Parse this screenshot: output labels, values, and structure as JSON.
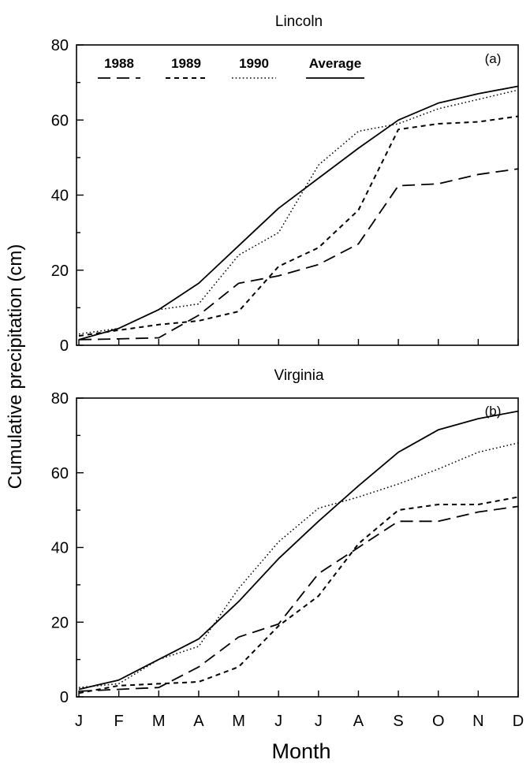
{
  "figure": {
    "ylabel": "Cumulative precipitation (cm)",
    "xlabel": "Month"
  },
  "legend": {
    "placement": "top",
    "entries": [
      "1988",
      "1989",
      "1990",
      "Average"
    ]
  },
  "chart_data": [
    {
      "type": "line",
      "title": "Lincoln",
      "panel_label": "(a)",
      "categories": [
        "J",
        "F",
        "M",
        "A",
        "M",
        "J",
        "J",
        "A",
        "S",
        "O",
        "N",
        "D"
      ],
      "ylim": [
        0,
        80
      ],
      "yticks": [
        "0",
        "20",
        "40",
        "60",
        "80"
      ],
      "series": [
        {
          "name": "1988",
          "style": "dashed",
          "values": [
            1.5,
            1.7,
            2.0,
            8.0,
            16.5,
            18.5,
            21.5,
            27.0,
            42.5,
            43.0,
            45.5,
            47.0
          ]
        },
        {
          "name": "1989",
          "style": "short-dashed",
          "values": [
            2.5,
            4.0,
            5.5,
            6.5,
            9.0,
            21.0,
            26.0,
            36.0,
            57.5,
            59.0,
            59.5,
            61.0
          ]
        },
        {
          "name": "1990",
          "style": "dotted",
          "values": [
            3.0,
            4.5,
            9.5,
            11.0,
            24.0,
            30.0,
            48.0,
            57.0,
            59.0,
            63.0,
            65.5,
            68.0
          ]
        },
        {
          "name": "Average",
          "style": "solid",
          "values": [
            1.5,
            4.5,
            9.5,
            16.5,
            26.5,
            36.5,
            44.5,
            52.5,
            60.0,
            64.5,
            67.0,
            69.0
          ]
        }
      ]
    },
    {
      "type": "line",
      "title": "Virginia",
      "panel_label": "(b)",
      "categories": [
        "J",
        "F",
        "M",
        "A",
        "M",
        "J",
        "J",
        "A",
        "S",
        "O",
        "N",
        "D"
      ],
      "ylim": [
        0,
        80
      ],
      "yticks": [
        "0",
        "20",
        "40",
        "60",
        "80"
      ],
      "series": [
        {
          "name": "1988",
          "style": "dashed",
          "values": [
            1.5,
            2.0,
            2.5,
            8.0,
            16.0,
            19.5,
            33.0,
            40.0,
            47.0,
            47.0,
            49.5,
            51.0
          ]
        },
        {
          "name": "1989",
          "style": "short-dashed",
          "values": [
            1.0,
            3.0,
            3.5,
            4.0,
            8.0,
            19.0,
            27.0,
            41.0,
            50.0,
            51.5,
            51.5,
            53.5
          ]
        },
        {
          "name": "1990",
          "style": "dotted",
          "values": [
            2.5,
            3.5,
            10.0,
            13.5,
            29.0,
            41.5,
            50.5,
            53.5,
            57.0,
            61.0,
            65.5,
            68.0
          ]
        },
        {
          "name": "Average",
          "style": "solid",
          "values": [
            2.0,
            4.5,
            10.0,
            15.5,
            25.5,
            37.0,
            47.0,
            56.5,
            65.5,
            71.5,
            74.5,
            76.5
          ]
        }
      ]
    }
  ]
}
